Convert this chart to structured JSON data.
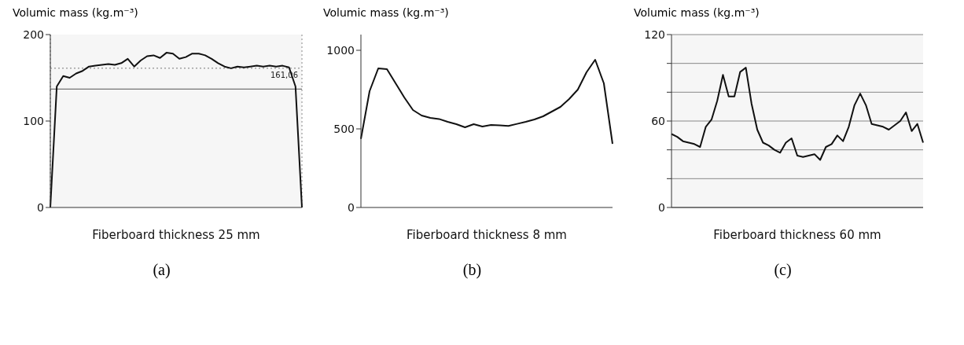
{
  "chart_data": [
    {
      "type": "line",
      "ylabel": "Volumic mass (kg.m⁻³)",
      "xlabel": "Fiberboard thickness 25 mm",
      "categories": [
        null,
        null,
        null,
        null,
        null,
        null,
        null,
        null,
        null,
        null,
        null,
        null,
        null,
        null,
        null,
        null,
        null,
        null,
        null,
        null,
        null,
        null,
        null,
        null,
        null,
        null,
        null,
        null,
        null,
        null,
        null,
        null,
        null,
        null,
        null,
        null,
        null,
        null,
        null,
        null
      ],
      "series": [
        {
          "color": "#111111",
          "values": [
            0,
            140,
            152,
            150,
            155,
            158,
            163,
            164,
            165,
            166,
            165,
            167,
            172,
            163,
            170,
            175,
            176,
            173,
            179,
            178,
            172,
            174,
            178,
            178,
            176,
            172,
            167,
            163,
            161,
            163,
            162,
            163,
            164,
            163,
            164,
            163,
            164,
            162,
            140,
            0
          ]
        }
      ],
      "ylim": [
        0,
        200
      ],
      "yticks": [
        0,
        100,
        200
      ],
      "grid": "x",
      "tick_labels": "y",
      "ref_lines": [
        {
          "axis": "y",
          "value": 161.06,
          "label": "161,06",
          "line_style": "dotted",
          "color": "#777777"
        },
        {
          "axis": "y",
          "value": 137,
          "color": "#555555"
        }
      ],
      "annotations": [
        "(a)"
      ]
    },
    {
      "type": "line",
      "ylabel": "Volumic mass (kg.m⁻³)",
      "xlabel": "Fiberboard thickness 8 mm",
      "categories": [
        null,
        null,
        null,
        null,
        null,
        null,
        null,
        null,
        null,
        null,
        null,
        null,
        null,
        null,
        null,
        null,
        null,
        null,
        null,
        null,
        null,
        null,
        null,
        null,
        null,
        null,
        null,
        null,
        null,
        null
      ],
      "series": [
        {
          "color": "#111111",
          "values": [
            436,
            740,
            885,
            880,
            790,
            700,
            620,
            585,
            570,
            563,
            545,
            530,
            510,
            530,
            515,
            525,
            522,
            519,
            532,
            545,
            560,
            580,
            610,
            640,
            690,
            750,
            860,
            940,
            790,
            405
          ]
        }
      ],
      "ylim": [
        0,
        1100
      ],
      "yticks": [
        0,
        500,
        1000
      ],
      "tick_labels": "y",
      "annotations": [
        "(b)"
      ]
    },
    {
      "type": "line",
      "ylabel": "Volumic mass (kg.m⁻³)",
      "xlabel": "Fiberboard thickness 60 mm",
      "categories": [
        null,
        null,
        null,
        null,
        null,
        null,
        null,
        null,
        null,
        null,
        null,
        null,
        null,
        null,
        null,
        null,
        null,
        null,
        null,
        null,
        null,
        null,
        null,
        null,
        null,
        null,
        null,
        null,
        null,
        null,
        null,
        null,
        null,
        null,
        null,
        null,
        null,
        null,
        null,
        null,
        null,
        null,
        null,
        null,
        null
      ],
      "series": [
        {
          "color": "#111111",
          "values": [
            51,
            49,
            46,
            45,
            44,
            42,
            56,
            61,
            74,
            92,
            77,
            77,
            94,
            97,
            72,
            54,
            45,
            43,
            40,
            38,
            45,
            48,
            36,
            35,
            36,
            37,
            33,
            42,
            44,
            50,
            46,
            56,
            71,
            79,
            71,
            58,
            57,
            56,
            54,
            57,
            60,
            66,
            53,
            58,
            45
          ]
        }
      ],
      "ylim": [
        0,
        120
      ],
      "yticks": [
        0,
        {
          "value": 20,
          "label": null
        },
        {
          "value": 40,
          "label": null
        },
        60,
        {
          "value": 80,
          "label": null
        },
        {
          "value": 100,
          "label": null
        },
        120
      ],
      "grid": "y",
      "tick_labels": "y",
      "annotations": [
        "(c)"
      ]
    }
  ]
}
